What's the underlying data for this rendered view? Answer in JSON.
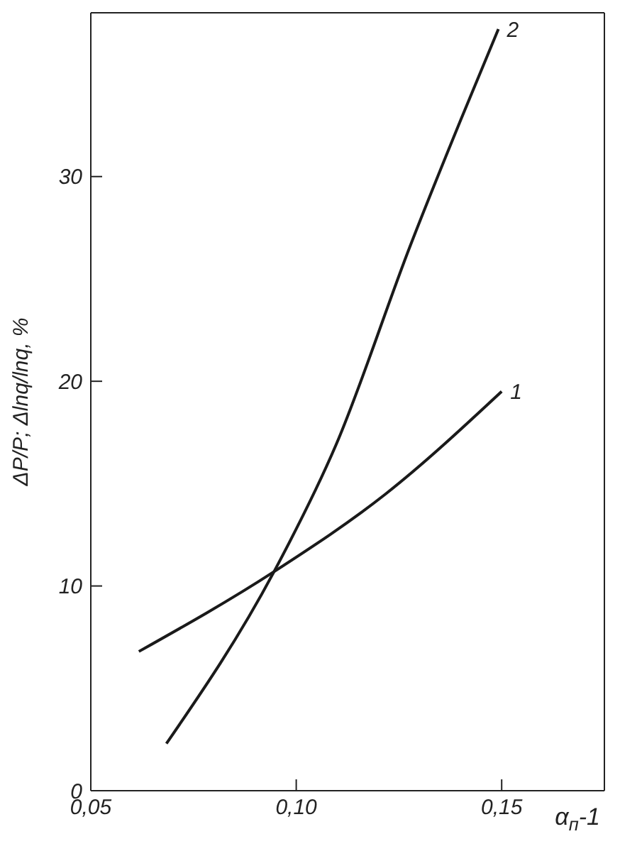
{
  "chart_data": {
    "type": "line",
    "xlabel": "α$_{п}$-1",
    "ylabel": "ΔP/P; Δlnq/lnq, %",
    "xlim": [
      0.05,
      0.175
    ],
    "xticks": [
      {
        "value": 0.05,
        "label": "0,05"
      },
      {
        "value": 0.1,
        "label": "0,10"
      },
      {
        "value": 0.15,
        "label": "0,15"
      }
    ],
    "ylim": [
      0,
      38
    ],
    "yticks": [
      0,
      10,
      20,
      30
    ],
    "grid": false,
    "marker": "none",
    "line_style": "solid",
    "series": [
      {
        "color": "#1a1a1a",
        "x": [
          0.0617,
          0.0946,
          0.1218,
          0.15
        ],
        "values": [
          6.8,
          10.7,
          14.5,
          19.5
        ]
      },
      {
        "color": "#1a1a1a",
        "x": [
          0.0684,
          0.0946,
          0.1097,
          0.1279,
          0.1401,
          0.1492
        ],
        "values": [
          2.3,
          10.7,
          16.9,
          26.7,
          32.8,
          37.2
        ]
      }
    ],
    "annotations": [
      {
        "text": "1",
        "x": 0.15,
        "y": 19.5
      },
      {
        "text": "2",
        "x": 0.1492,
        "y": 37.2
      }
    ]
  }
}
